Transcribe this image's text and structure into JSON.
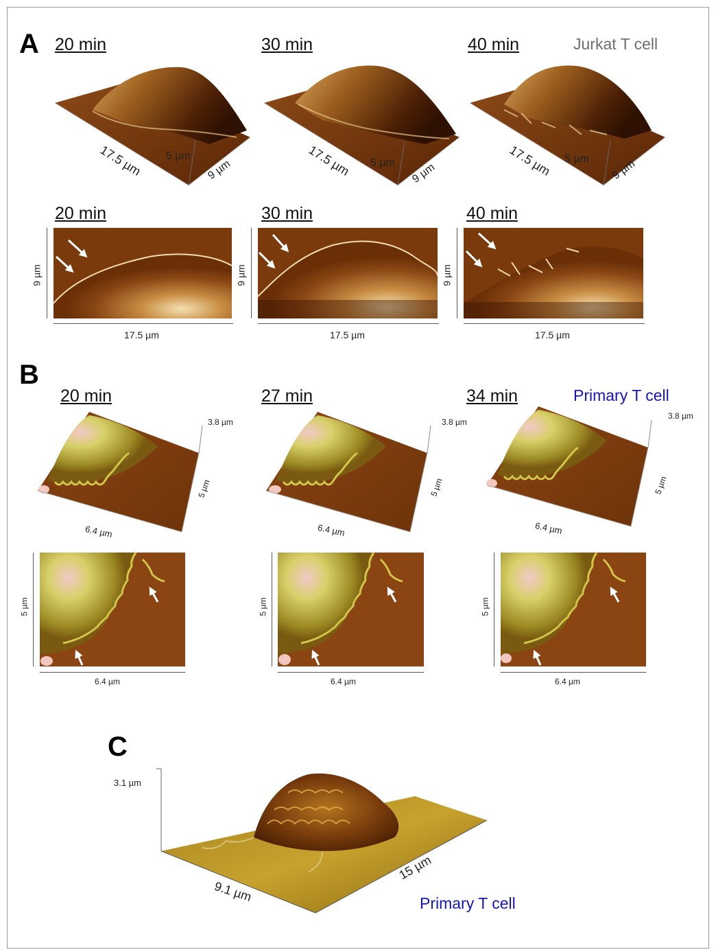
{
  "panels": {
    "A": {
      "letter": "A",
      "cell_type": "Jurkat T cell",
      "row1": [
        {
          "time": "20 min",
          "x_dim": "17.5 µm",
          "z_dim": "5 µm",
          "y_dim": "9 µm"
        },
        {
          "time": "30 min",
          "x_dim": "17.5 µm",
          "z_dim": "5 µm",
          "y_dim": "9 µm"
        },
        {
          "time": "40 min",
          "x_dim": "17.5 µm",
          "z_dim": "5 µm",
          "y_dim": "9 µm"
        }
      ],
      "row2": [
        {
          "time": "20 min",
          "x_dim": "17.5 µm",
          "y_dim": "9 µm"
        },
        {
          "time": "30 min",
          "x_dim": "17.5 µm",
          "y_dim": "9 µm"
        },
        {
          "time": "40 min",
          "x_dim": "17.5 µm",
          "y_dim": "9 µm"
        }
      ]
    },
    "B": {
      "letter": "B",
      "cell_type": "Primary T cell",
      "row1": [
        {
          "time": "20 min",
          "z_dim": "3.8 µm",
          "y_dim": "5 µm",
          "x_dim": "6.4 µm"
        },
        {
          "time": "27 min",
          "z_dim": "3.8 µm",
          "y_dim": "5 µm",
          "x_dim": "6.4 µm"
        },
        {
          "time": "34 min",
          "z_dim": "3.8 µm",
          "y_dim": "5 µm",
          "x_dim": "6.4 µm"
        }
      ],
      "row2": [
        {
          "y_dim": "5 µm",
          "x_dim": "6.4 µm"
        },
        {
          "y_dim": "5 µm",
          "x_dim": "6.4 µm"
        },
        {
          "y_dim": "5 µm",
          "x_dim": "6.4 µm"
        }
      ]
    },
    "C": {
      "letter": "C",
      "cell_type": "Primary T cell",
      "z_dim": "3.1 µm",
      "y_dim": "9.1 µm",
      "x_dim": "15 µm"
    }
  },
  "colors": {
    "afm_brown": "#7a3a0c",
    "afm_highlight": "#f3dcae",
    "afm_gold": "#8a6a10",
    "afm_yellow": "#c8c050",
    "label_blue": "#1515b8",
    "label_gray": "#6e6e6e"
  }
}
